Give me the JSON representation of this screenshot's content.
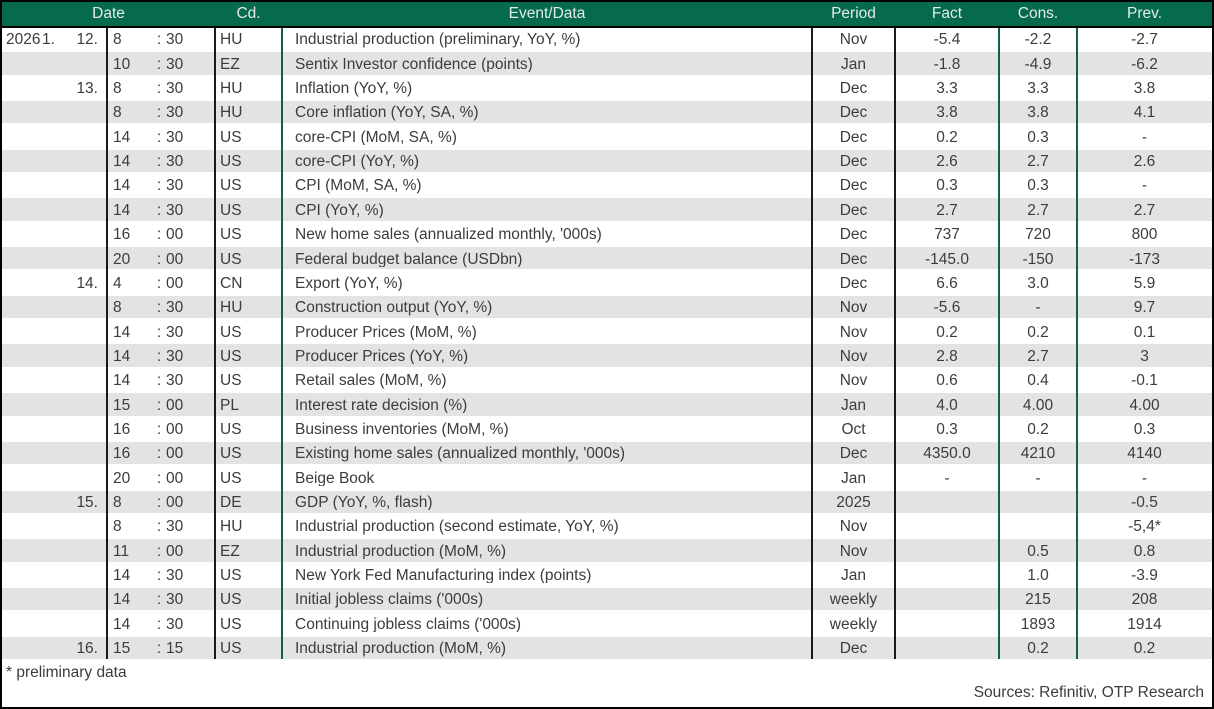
{
  "colors": {
    "header_bg": "#056a4e",
    "header_text": "#e3ece7",
    "row_alt_bg": "#e3e3e3",
    "body_text": "#3c3c3c",
    "divider_green": "#10604a",
    "divider_dark": "#1a1a18",
    "outer_border": "#000000"
  },
  "table": {
    "time_separator": ":",
    "columns": {
      "date": "Date",
      "cd": "Cd.",
      "event": "Event/Data",
      "period": "Period",
      "fact": "Fact",
      "cons": "Cons.",
      "prev": "Prev."
    },
    "rows": [
      {
        "year": "2026",
        "month": "1.",
        "day": "12.",
        "hour": "8",
        "minute": "30",
        "cd": "HU",
        "event": "Industrial production (preliminary, YoY, %)",
        "period": "Nov",
        "fact": "-5.4",
        "cons": "-2.2",
        "prev": "-2.7"
      },
      {
        "year": "",
        "month": "",
        "day": "",
        "hour": "10",
        "minute": "30",
        "cd": "EZ",
        "event": "Sentix Investor confidence (points)",
        "period": "Jan",
        "fact": "-1.8",
        "cons": "-4.9",
        "prev": "-6.2"
      },
      {
        "year": "",
        "month": "",
        "day": "13.",
        "hour": "8",
        "minute": "30",
        "cd": "HU",
        "event": "Inflation (YoY, %)",
        "period": "Dec",
        "fact": "3.3",
        "cons": "3.3",
        "prev": "3.8"
      },
      {
        "year": "",
        "month": "",
        "day": "",
        "hour": "8",
        "minute": "30",
        "cd": "HU",
        "event": "Core inflation (YoY, SA, %)",
        "period": "Dec",
        "fact": "3.8",
        "cons": "3.8",
        "prev": "4.1"
      },
      {
        "year": "",
        "month": "",
        "day": "",
        "hour": "14",
        "minute": "30",
        "cd": "US",
        "event": "core-CPI (MoM, SA, %)",
        "period": "Dec",
        "fact": "0.2",
        "cons": "0.3",
        "prev": "-"
      },
      {
        "year": "",
        "month": "",
        "day": "",
        "hour": "14",
        "minute": "30",
        "cd": "US",
        "event": "core-CPI (YoY, %)",
        "period": "Dec",
        "fact": "2.6",
        "cons": "2.7",
        "prev": "2.6"
      },
      {
        "year": "",
        "month": "",
        "day": "",
        "hour": "14",
        "minute": "30",
        "cd": "US",
        "event": "CPI (MoM, SA, %)",
        "period": "Dec",
        "fact": "0.3",
        "cons": "0.3",
        "prev": "-"
      },
      {
        "year": "",
        "month": "",
        "day": "",
        "hour": "14",
        "minute": "30",
        "cd": "US",
        "event": "CPI (YoY, %)",
        "period": "Dec",
        "fact": "2.7",
        "cons": "2.7",
        "prev": "2.7"
      },
      {
        "year": "",
        "month": "",
        "day": "",
        "hour": "16",
        "minute": "00",
        "cd": "US",
        "event": "New home sales (annualized monthly, '000s)",
        "period": "Dec",
        "fact": "737",
        "cons": "720",
        "prev": "800"
      },
      {
        "year": "",
        "month": "",
        "day": "",
        "hour": "20",
        "minute": "00",
        "cd": "US",
        "event": "Federal budget balance (USDbn)",
        "period": "Dec",
        "fact": "-145.0",
        "cons": "-150",
        "prev": "-173"
      },
      {
        "year": "",
        "month": "",
        "day": "14.",
        "hour": "4",
        "minute": "00",
        "cd": "CN",
        "event": "Export (YoY, %)",
        "period": "Dec",
        "fact": "6.6",
        "cons": "3.0",
        "prev": "5.9"
      },
      {
        "year": "",
        "month": "",
        "day": "",
        "hour": "8",
        "minute": "30",
        "cd": "HU",
        "event": "Construction output (YoY, %)",
        "period": "Nov",
        "fact": "-5.6",
        "cons": "-",
        "prev": "9.7"
      },
      {
        "year": "",
        "month": "",
        "day": "",
        "hour": "14",
        "minute": "30",
        "cd": "US",
        "event": "Producer Prices (MoM, %)",
        "period": "Nov",
        "fact": "0.2",
        "cons": "0.2",
        "prev": "0.1"
      },
      {
        "year": "",
        "month": "",
        "day": "",
        "hour": "14",
        "minute": "30",
        "cd": "US",
        "event": "Producer Prices (YoY, %)",
        "period": "Nov",
        "fact": "2.8",
        "cons": "2.7",
        "prev": "3"
      },
      {
        "year": "",
        "month": "",
        "day": "",
        "hour": "14",
        "minute": "30",
        "cd": "US",
        "event": "Retail sales (MoM, %)",
        "period": "Nov",
        "fact": "0.6",
        "cons": "0.4",
        "prev": "-0.1"
      },
      {
        "year": "",
        "month": "",
        "day": "",
        "hour": "15",
        "minute": "00",
        "cd": "PL",
        "event": "Interest rate decision (%)",
        "period": "Jan",
        "fact": "4.0",
        "cons": "4.00",
        "prev": "4.00"
      },
      {
        "year": "",
        "month": "",
        "day": "",
        "hour": "16",
        "minute": "00",
        "cd": "US",
        "event": "Business inventories (MoM, %)",
        "period": "Oct",
        "fact": "0.3",
        "cons": "0.2",
        "prev": "0.3"
      },
      {
        "year": "",
        "month": "",
        "day": "",
        "hour": "16",
        "minute": "00",
        "cd": "US",
        "event": "Existing home sales (annualized monthly, '000s)",
        "period": "Dec",
        "fact": "4350.0",
        "cons": "4210",
        "prev": "4140"
      },
      {
        "year": "",
        "month": "",
        "day": "",
        "hour": "20",
        "minute": "00",
        "cd": "US",
        "event": "Beige Book",
        "period": "Jan",
        "fact": "-",
        "cons": "-",
        "prev": "-"
      },
      {
        "year": "",
        "month": "",
        "day": "15.",
        "hour": "8",
        "minute": "00",
        "cd": "DE",
        "event": "GDP (YoY, %, flash)",
        "period": "2025",
        "fact": "",
        "cons": "",
        "prev": "-0.5"
      },
      {
        "year": "",
        "month": "",
        "day": "",
        "hour": "8",
        "minute": "30",
        "cd": "HU",
        "event": "Industrial production (second estimate, YoY, %)",
        "period": "Nov",
        "fact": "",
        "cons": "",
        "prev": "-5,4*"
      },
      {
        "year": "",
        "month": "",
        "day": "",
        "hour": "11",
        "minute": "00",
        "cd": "EZ",
        "event": "Industrial production (MoM, %)",
        "period": "Nov",
        "fact": "",
        "cons": "0.5",
        "prev": "0.8"
      },
      {
        "year": "",
        "month": "",
        "day": "",
        "hour": "14",
        "minute": "30",
        "cd": "US",
        "event": "New York Fed Manufacturing index (points)",
        "period": "Jan",
        "fact": "",
        "cons": "1.0",
        "prev": "-3.9"
      },
      {
        "year": "",
        "month": "",
        "day": "",
        "hour": "14",
        "minute": "30",
        "cd": "US",
        "event": "Initial jobless claims ('000s)",
        "period": "weekly",
        "fact": "",
        "cons": "215",
        "prev": "208"
      },
      {
        "year": "",
        "month": "",
        "day": "",
        "hour": "14",
        "minute": "30",
        "cd": "US",
        "event": "Continuing jobless claims ('000s)",
        "period": "weekly",
        "fact": "",
        "cons": "1893",
        "prev": "1914"
      },
      {
        "year": "",
        "month": "",
        "day": "16.",
        "hour": "15",
        "minute": "15",
        "cd": "US",
        "event": "Industrial production (MoM, %)",
        "period": "Dec",
        "fact": "",
        "cons": "0.2",
        "prev": "0.2"
      }
    ]
  },
  "footer": {
    "note": "* preliminary data",
    "sources": "Sources: Refinitiv, OTP Research"
  }
}
